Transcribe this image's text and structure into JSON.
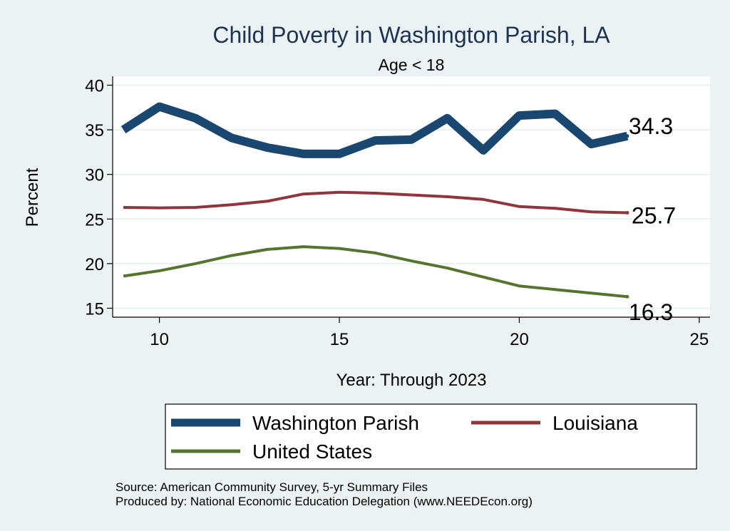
{
  "chart_data": {
    "type": "line",
    "title": "Child Poverty in Washington Parish, LA",
    "subtitle": "Age < 18",
    "xlabel": "Year: Through 2023",
    "ylabel": "Percent",
    "xlim": [
      8.7,
      25.3
    ],
    "ylim": [
      14,
      41
    ],
    "xticks": [
      10,
      15,
      20,
      25
    ],
    "yticks": [
      15,
      20,
      25,
      30,
      35,
      40
    ],
    "x": [
      9,
      10,
      11,
      12,
      13,
      14,
      15,
      16,
      17,
      18,
      19,
      20,
      21,
      22,
      23
    ],
    "series": [
      {
        "name": "Washington Parish",
        "color": "#1a476f",
        "values": [
          35.0,
          37.6,
          36.3,
          34.1,
          33.0,
          32.3,
          32.3,
          33.8,
          33.9,
          36.3,
          32.7,
          36.6,
          36.8,
          33.4,
          34.3
        ],
        "end_label": "34.3"
      },
      {
        "name": "Louisiana",
        "color": "#90353b",
        "values": [
          26.3,
          26.25,
          26.3,
          26.6,
          27.0,
          27.8,
          28.0,
          27.9,
          27.7,
          27.5,
          27.2,
          26.4,
          26.2,
          25.8,
          25.7
        ],
        "end_label": "25.7"
      },
      {
        "name": "United States",
        "color": "#55752f",
        "values": [
          18.6,
          19.2,
          20.0,
          20.9,
          21.6,
          21.9,
          21.7,
          21.2,
          20.3,
          19.5,
          18.5,
          17.5,
          17.1,
          16.7,
          16.3
        ],
        "end_label": "16.3"
      }
    ],
    "legend_position": "bottom",
    "grid": true
  },
  "notes": {
    "source": "Source: American Community Survey, 5-yr Summary Files",
    "produced_by": "Produced by: National Economic Education Delegation (www.NEEDEcon.org)"
  }
}
